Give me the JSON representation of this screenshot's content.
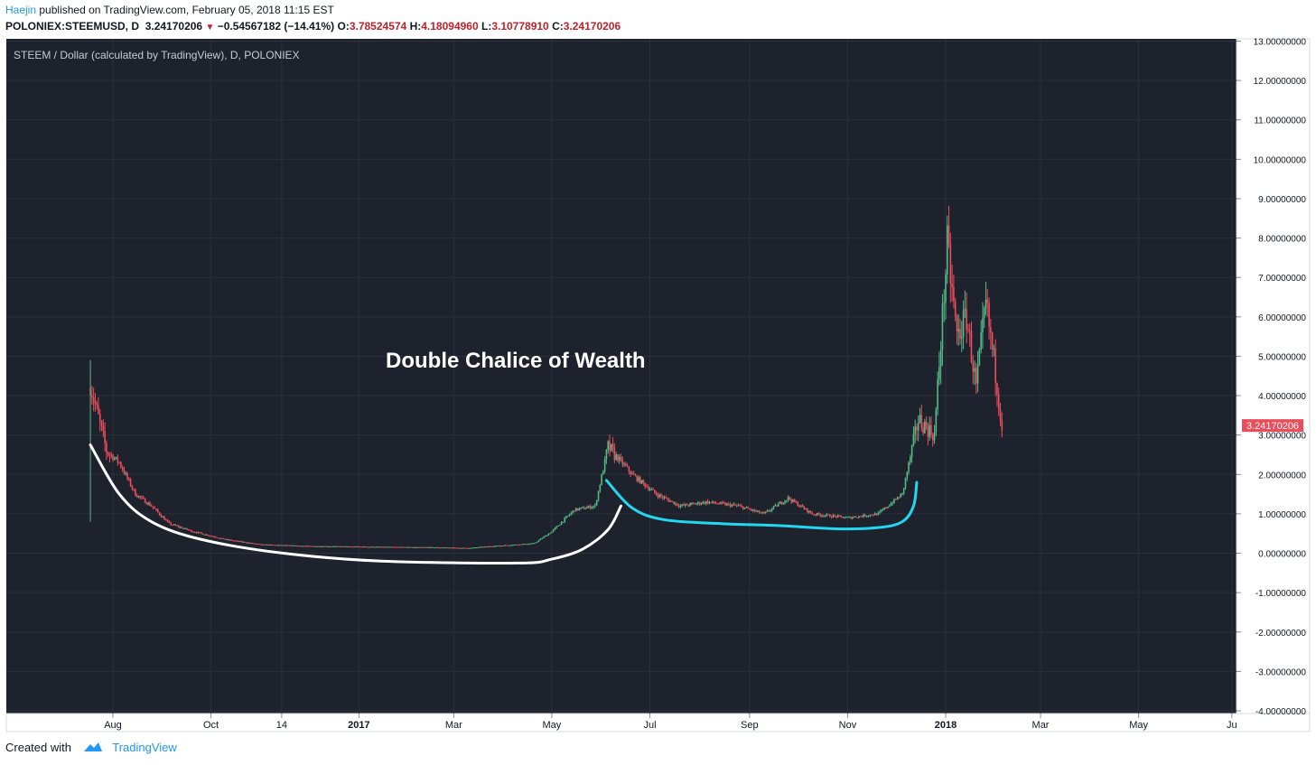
{
  "header": {
    "author": "Haejin",
    "published": "published on TradingView.com, February 05, 2018 11:15 EST",
    "symbol": "POLONIEX:STEEMUSD, D",
    "last": "3.24170206",
    "change": "−0.54567182 (−14.41%)",
    "o_label": "O:",
    "o_val": "3.78524574",
    "h_label": "H:",
    "h_val": "4.18094960",
    "l_label": "L:",
    "l_val": "3.10778910",
    "c_label": "C:",
    "c_val": "3.24170206"
  },
  "footer": {
    "created": "Created with",
    "brand": "TradingView"
  },
  "colors": {
    "bg": "#1e222d",
    "grid": "#2b303b",
    "up": "#53b987",
    "down": "#eb4d5c",
    "chalice1": "#ffffff",
    "chalice2": "#22d8f0",
    "axis_text": "#131722"
  },
  "chart_data": {
    "type": "candlestick",
    "title": "STEEM / Dollar (calculated by TradingView), D, POLONIEX",
    "annotation": "Double Chalice of Wealth",
    "price_label": "3.24170206",
    "ylim": [
      -4,
      13
    ],
    "y_ticks": [
      "13.00000000",
      "12.00000000",
      "11.00000000",
      "10.00000000",
      "9.00000000",
      "8.00000000",
      "7.00000000",
      "6.00000000",
      "5.00000000",
      "4.00000000",
      "3.00000000",
      "2.00000000",
      "1.00000000",
      "0.00000000",
      "-1.00000000",
      "-2.00000000",
      "-3.00000000",
      "-4.00000000"
    ],
    "x_ticks": [
      "Aug",
      "Oct",
      "14",
      "2017",
      "Mar",
      "May",
      "Jul",
      "Sep",
      "Nov",
      "2018",
      "Mar",
      "May",
      "Ju"
    ],
    "x_tick_dates": [
      "2016-08-01",
      "2016-10-01",
      "2016-11-14",
      "2017-01-01",
      "2017-03-01",
      "2017-05-01",
      "2017-07-01",
      "2017-09-01",
      "2017-11-01",
      "2018-01-01",
      "2018-03-01",
      "2018-05-01",
      "2018-06-28"
    ],
    "price_path": [
      [
        "2016-07-18",
        4.3
      ],
      [
        "2016-07-22",
        3.6
      ],
      [
        "2016-07-28",
        2.6
      ],
      [
        "2016-08-05",
        2.3
      ],
      [
        "2016-08-15",
        1.5
      ],
      [
        "2016-08-25",
        1.2
      ],
      [
        "2016-09-05",
        0.75
      ],
      [
        "2016-09-20",
        0.55
      ],
      [
        "2016-10-10",
        0.35
      ],
      [
        "2016-11-01",
        0.22
      ],
      [
        "2016-12-01",
        0.18
      ],
      [
        "2017-01-15",
        0.16
      ],
      [
        "2017-02-15",
        0.15
      ],
      [
        "2017-03-10",
        0.13
      ],
      [
        "2017-03-25",
        0.18
      ],
      [
        "2017-04-20",
        0.25
      ],
      [
        "2017-05-01",
        0.55
      ],
      [
        "2017-05-15",
        1.1
      ],
      [
        "2017-05-28",
        1.2
      ],
      [
        "2017-06-05",
        2.7
      ],
      [
        "2017-06-20",
        2.0
      ],
      [
        "2017-07-05",
        1.5
      ],
      [
        "2017-07-20",
        1.2
      ],
      [
        "2017-08-05",
        1.3
      ],
      [
        "2017-08-25",
        1.2
      ],
      [
        "2017-09-10",
        1.0
      ],
      [
        "2017-09-25",
        1.4
      ],
      [
        "2017-10-10",
        1.0
      ],
      [
        "2017-11-01",
        0.9
      ],
      [
        "2017-11-20",
        1.0
      ],
      [
        "2017-12-05",
        1.5
      ],
      [
        "2017-12-15",
        3.4
      ],
      [
        "2017-12-25",
        3.0
      ],
      [
        "2018-01-02",
        7.8
      ],
      [
        "2018-01-08",
        5.5
      ],
      [
        "2018-01-14",
        6.0
      ],
      [
        "2018-01-20",
        4.2
      ],
      [
        "2018-01-26",
        6.3
      ],
      [
        "2018-02-01",
        4.6
      ],
      [
        "2018-02-05",
        3.24
      ]
    ]
  }
}
